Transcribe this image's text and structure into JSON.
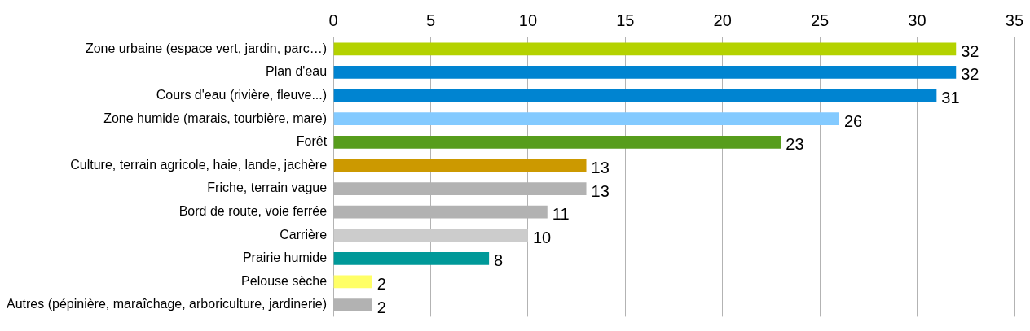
{
  "chart_data": {
    "type": "bar",
    "orientation": "horizontal",
    "categories": [
      "Zone urbaine (espace vert, jardin, parc…)",
      "Plan d'eau",
      "Cours d'eau (rivière, fleuve...)",
      "Zone humide (marais, tourbière, mare)",
      "Forêt",
      "Culture, terrain agricole, haie, lande, jachère",
      "Friche, terrain vague",
      "Bord de route, voie ferrée",
      "Carrière",
      "Prairie humide",
      "Pelouse sèche",
      "Autres (pépinière, maraîchage, arboriculture, jardinerie)"
    ],
    "values": [
      32,
      32,
      31,
      26,
      23,
      13,
      13,
      11,
      10,
      8,
      2,
      2
    ],
    "colors": [
      "#b4d200",
      "#0084d1",
      "#0084d1",
      "#83caff",
      "#579d1c",
      "#cc9900",
      "#b2b2b2",
      "#b2b2b2",
      "#cccccc",
      "#009999",
      "#ffff66",
      "#b2b2b2"
    ],
    "xlim": [
      0,
      35
    ],
    "xticks": [
      0,
      5,
      10,
      15,
      20,
      25,
      30,
      35
    ],
    "grid": "x",
    "data_labels": true,
    "legend": false
  }
}
